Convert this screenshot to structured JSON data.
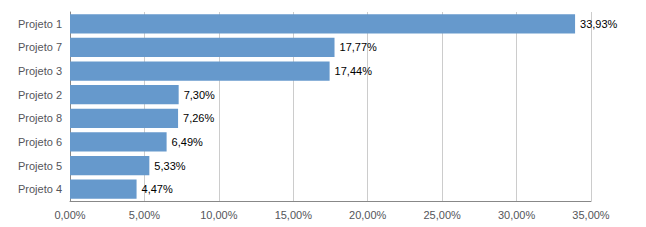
{
  "chart_data": {
    "type": "bar",
    "orientation": "horizontal",
    "categories": [
      "Projeto 4",
      "Projeto 5",
      "Projeto 6",
      "Projeto 8",
      "Projeto 2",
      "Projeto 3",
      "Projeto 7",
      "Projeto 1"
    ],
    "values": [
      4.47,
      5.33,
      6.49,
      7.26,
      7.3,
      17.44,
      17.77,
      33.93
    ],
    "value_labels": [
      "4,47%",
      "5,33%",
      "6,49%",
      "7,26%",
      "7,30%",
      "17,44%",
      "17,77%",
      "33,93%"
    ],
    "color": "#6699cc",
    "xlim": [
      0,
      35
    ],
    "xticks": [
      {
        "value": 0,
        "label": "0,00%"
      },
      {
        "value": 5,
        "label": "5,00%"
      },
      {
        "value": 10,
        "label": "10,00%"
      },
      {
        "value": 15,
        "label": "15,00%"
      },
      {
        "value": 20,
        "label": "20,00%"
      },
      {
        "value": 25,
        "label": "25,00%"
      },
      {
        "value": 30,
        "label": "30,00%"
      },
      {
        "value": 35,
        "label": "35,00%"
      }
    ],
    "grid": true,
    "data_labels": true
  }
}
